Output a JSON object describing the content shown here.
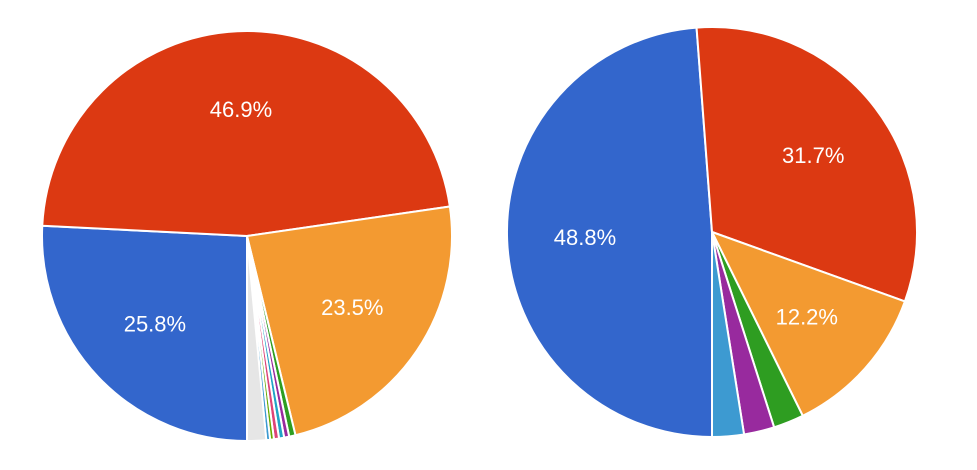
{
  "colors": {
    "blue": "#3366cc",
    "red": "#dc3912",
    "orange": "#f39a31",
    "green": "#2e9d21",
    "purple": "#982a9e",
    "teal": "#1fa3c6",
    "lightblue": "#3d9ad1",
    "pink": "#dd4477",
    "lime": "#66aa00",
    "gray": "#bdbdbd"
  },
  "chart_data": [
    {
      "type": "pie",
      "slices": [
        {
          "value": 25.8,
          "label": "25.8%",
          "color": "#3366cc"
        },
        {
          "value": 46.9,
          "label": "46.9%",
          "color": "#dc3912"
        },
        {
          "value": 23.5,
          "label": "23.5%",
          "color": "#f39a31"
        },
        {
          "value": 0.5,
          "label": "",
          "color": "#2e9d21"
        },
        {
          "value": 0.4,
          "label": "",
          "color": "#982a9e"
        },
        {
          "value": 0.4,
          "label": "",
          "color": "#1fa3c6"
        },
        {
          "value": 0.4,
          "label": "",
          "color": "#dd4477"
        },
        {
          "value": 0.3,
          "label": "",
          "color": "#66aa00"
        },
        {
          "value": 0.3,
          "label": "",
          "color": "#3d9ad1"
        },
        {
          "value": 1.5,
          "label": "",
          "color": "#e6e6e6"
        }
      ]
    },
    {
      "type": "pie",
      "slices": [
        {
          "value": 48.8,
          "label": "48.8%",
          "color": "#3366cc"
        },
        {
          "value": 31.7,
          "label": "31.7%",
          "color": "#dc3912"
        },
        {
          "value": 12.2,
          "label": "12.2%",
          "color": "#f39a31"
        },
        {
          "value": 2.4,
          "label": "",
          "color": "#2e9d21"
        },
        {
          "value": 2.4,
          "label": "",
          "color": "#982a9e"
        },
        {
          "value": 2.5,
          "label": "",
          "color": "#3d9ad1"
        }
      ]
    }
  ]
}
